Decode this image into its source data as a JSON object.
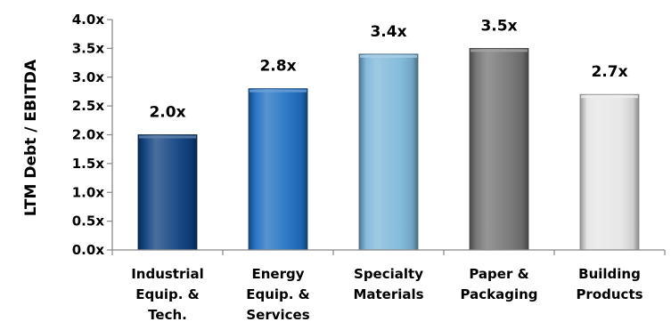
{
  "chart_data": {
    "type": "bar",
    "categories": [
      [
        "Industrial",
        "Equip. &",
        "Tech."
      ],
      [
        "Energy",
        "Equip. &",
        "Services"
      ],
      [
        "Specialty",
        "Materials"
      ],
      [
        "Paper &",
        "Packaging"
      ],
      [
        "Building",
        "Products"
      ]
    ],
    "values": [
      2.0,
      2.8,
      3.4,
      3.5,
      2.7
    ],
    "data_labels": [
      "2.0x",
      "2.8x",
      "3.4x",
      "3.5x",
      "2.7x"
    ],
    "ylabel": "LTM Debt / EBITDA",
    "ylim": [
      0,
      4.0
    ],
    "yticks": [
      "0.0x",
      "0.5x",
      "1.0x",
      "1.5x",
      "2.0x",
      "2.5x",
      "3.0x",
      "3.5x",
      "4.0x"
    ],
    "grid": false,
    "colors": [
      "#0d3f7f",
      "#1f6fc1",
      "#7db7da",
      "#737373",
      "#e6e6e6"
    ]
  }
}
